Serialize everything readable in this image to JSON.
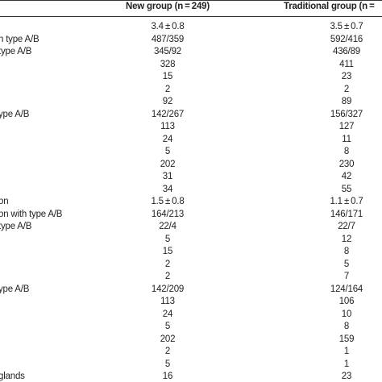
{
  "table": {
    "headers": [
      "New group (n = 249)",
      "Traditional group (n ="
    ],
    "rows": [
      [
        null,
        "3.4 ± 0.8",
        "3.5 ± 0.7"
      ],
      [
        "n type A/B",
        "487/359",
        "592/416"
      ],
      [
        " type A/B",
        "345/92",
        "436/89"
      ],
      [
        null,
        "328",
        "411"
      ],
      [
        null,
        "15",
        "23"
      ],
      [
        null,
        "2",
        "2"
      ],
      [
        null,
        "92",
        "89"
      ],
      [
        "ype A/B",
        "142/267",
        "156/327"
      ],
      [
        null,
        "113",
        "127"
      ],
      [
        null,
        "24",
        "11"
      ],
      [
        null,
        "5",
        "8"
      ],
      [
        null,
        "202",
        "230"
      ],
      [
        null,
        "31",
        "42"
      ],
      [
        null,
        "34",
        "55"
      ],
      [
        "on",
        "1.5 ± 0.8",
        "1.1 ± 0.7"
      ],
      [
        "on with type A/B",
        "164/213",
        "146/171"
      ],
      [
        " type A/B",
        "22/4",
        "22/7"
      ],
      [
        null,
        "5",
        "12"
      ],
      [
        null,
        "15",
        "8"
      ],
      [
        null,
        "2",
        "5"
      ],
      [
        null,
        "2",
        "7"
      ],
      [
        "ype A/B",
        "142/209",
        "124/164"
      ],
      [
        null,
        "113",
        "106"
      ],
      [
        null,
        "24",
        "10"
      ],
      [
        null,
        "5",
        "8"
      ],
      [
        null,
        "202",
        "159"
      ],
      [
        null,
        "2",
        "1"
      ],
      [
        null,
        "5",
        "1"
      ],
      [
        "glands",
        "16",
        "23"
      ]
    ]
  }
}
